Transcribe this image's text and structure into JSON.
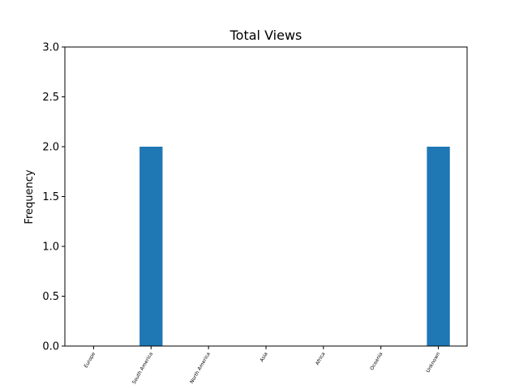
{
  "chart_data": {
    "type": "bar",
    "title": "Total Views",
    "xlabel": "",
    "ylabel": "Frequency",
    "categories": [
      "Europe",
      "South America",
      "North America",
      "Asia",
      "Africa",
      "Oceania",
      "Unknown"
    ],
    "values": [
      0,
      2,
      0,
      0,
      0,
      0,
      2
    ],
    "ylim": [
      0,
      3.0
    ],
    "yticks": [
      "0.0",
      "0.5",
      "1.0",
      "1.5",
      "2.0",
      "2.5",
      "3.0"
    ],
    "bar_color": "#1f77b4",
    "grid": false,
    "legend": "none"
  }
}
